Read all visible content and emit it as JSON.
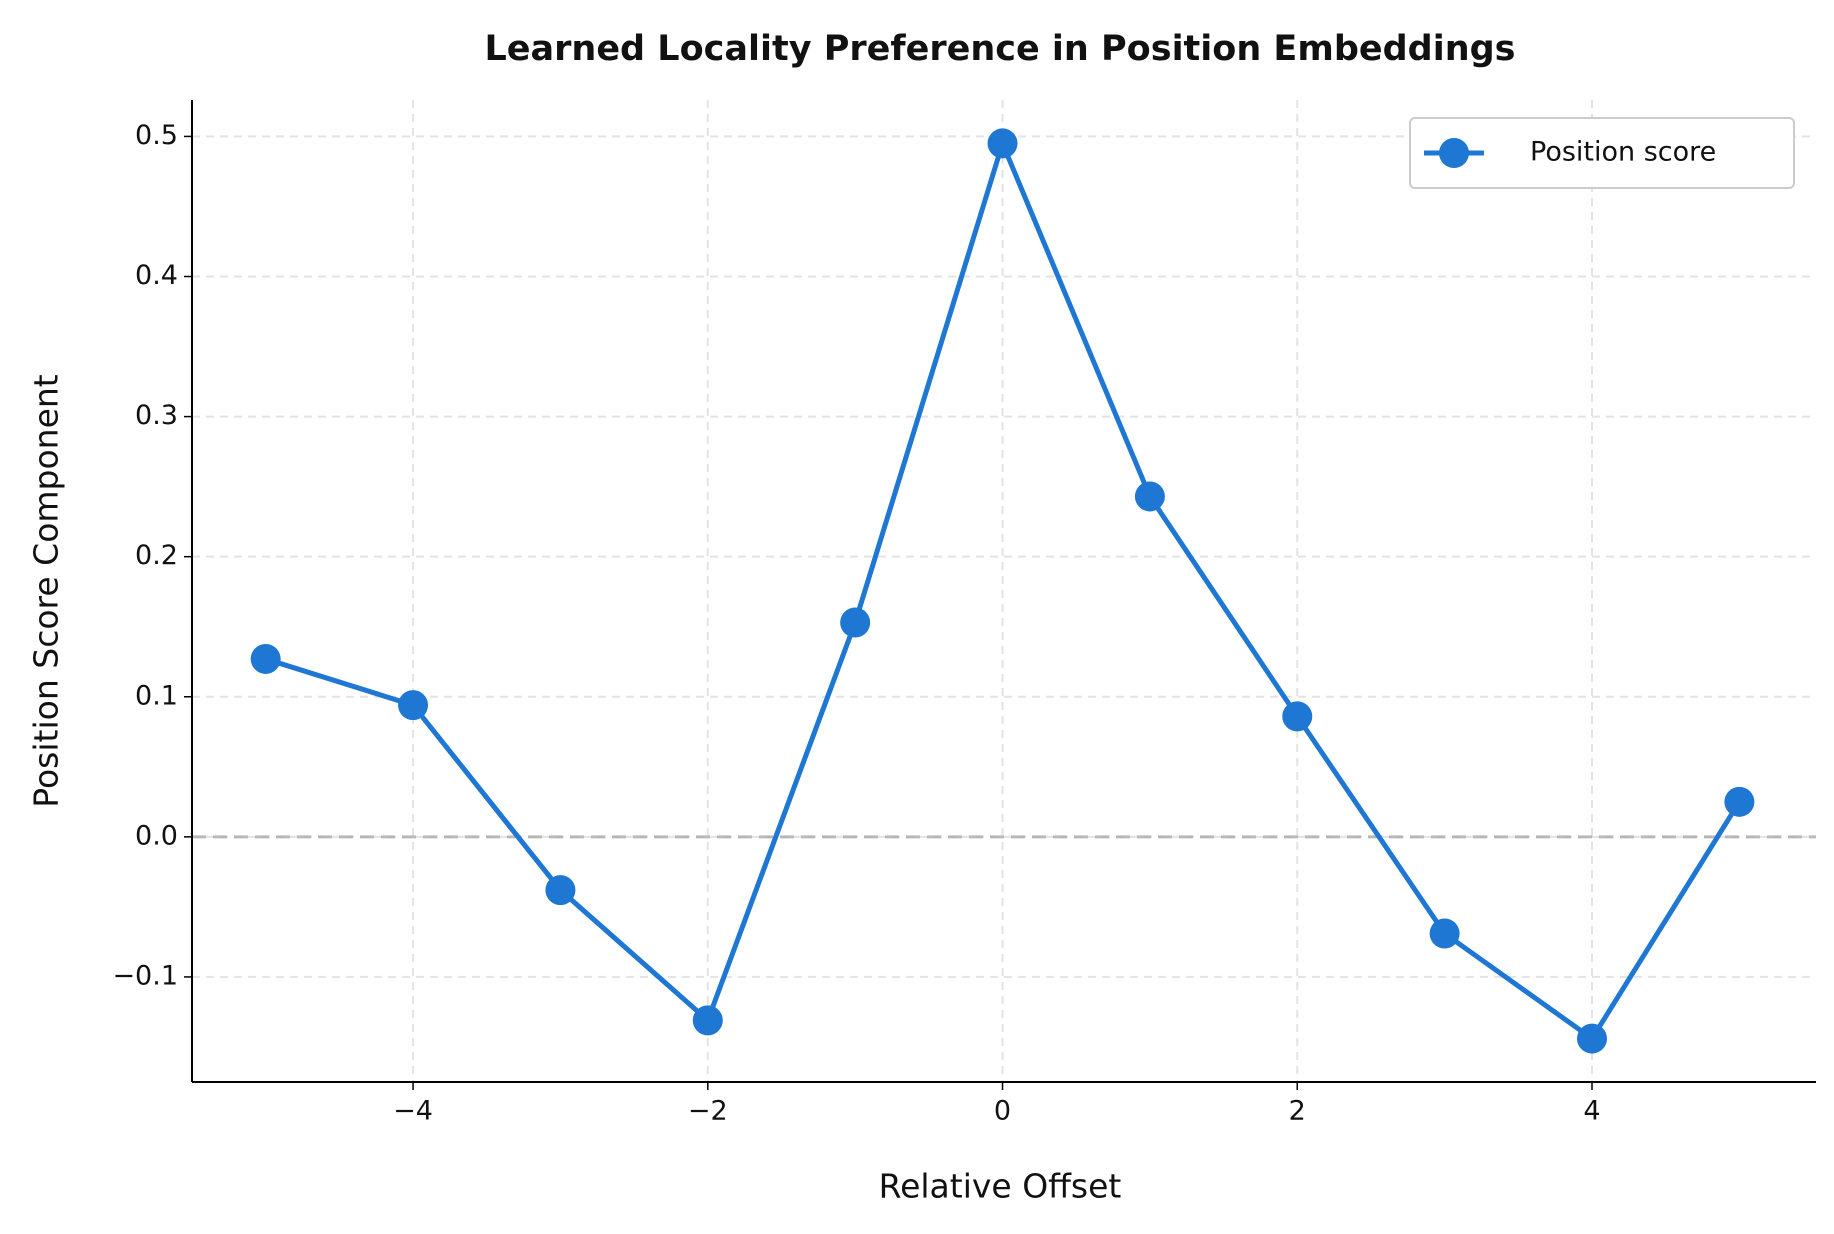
{
  "chart_data": {
    "type": "line",
    "title": "Learned Locality Preference in Position Embeddings",
    "x_label": "Relative Offset",
    "y_label": "Position Score Component",
    "x": [
      -5,
      -4,
      -3,
      -2,
      -1,
      0,
      1,
      2,
      3,
      4,
      5
    ],
    "series": [
      {
        "name": "Position score",
        "color": "#1f77d4",
        "values": [
          0.127,
          0.094,
          -0.038,
          -0.131,
          0.153,
          0.495,
          0.243,
          0.086,
          -0.069,
          -0.144,
          0.025
        ]
      }
    ],
    "xlim": [
      -5.5,
      5.52
    ],
    "ylim": [
      -0.175,
      0.526
    ],
    "xticks": [
      {
        "value": -4,
        "label": "−4"
      },
      {
        "value": -2,
        "label": "−2"
      },
      0,
      2,
      4
    ],
    "yticks": [
      {
        "value": -0.1,
        "label": "−0.1"
      },
      {
        "value": 0,
        "label": "0.0"
      },
      0.1,
      0.2,
      0.3,
      0.4,
      0.5
    ],
    "hline": 0,
    "grid": true,
    "legend": "upper right"
  }
}
